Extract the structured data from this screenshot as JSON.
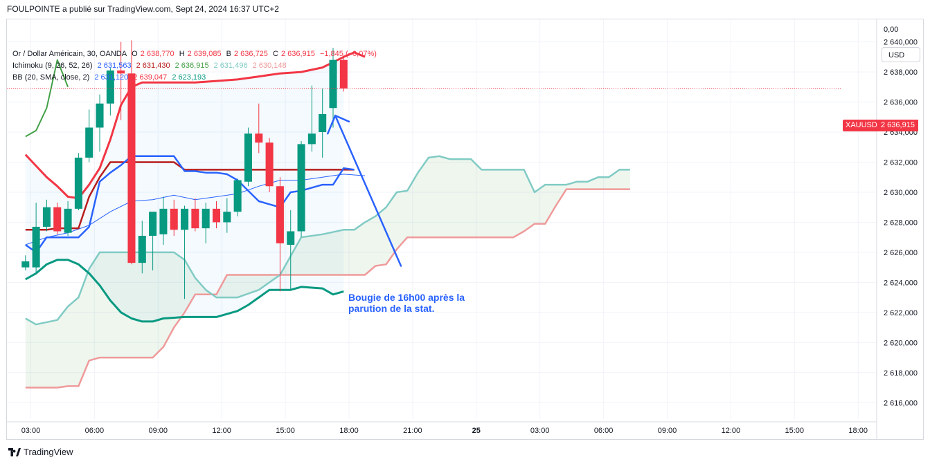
{
  "header": {
    "published": "FOULPOINTE a publié sur TradingView.com, Sept 24, 2024 16:37 UTC+2"
  },
  "legend": {
    "symbol": "Or / Dollar Américain, 30, OANDA",
    "o_label": "O",
    "o_value": "2 638,770",
    "h_label": "H",
    "h_value": "2 639,085",
    "b_label": "B",
    "b_value": "2 636,725",
    "c_label": "C",
    "c_value": "2 636,915",
    "change": "−1,845 (−0,07%)",
    "ichimoku_label": "Ichimoku (9, 26, 52, 26)",
    "ichimoku_values": [
      "2 631,563",
      "2 631,430",
      "2 636,915",
      "2 631,496",
      "2 630,148"
    ],
    "bb_label": "BB (20, SMA, close, 2)",
    "bb_values": [
      "2 631,120",
      "2 639,047",
      "2 623,193"
    ]
  },
  "currency_button": "USD",
  "zero_label": "0,00",
  "symbol_tag": "XAUUSD",
  "last_price": "2 636,915",
  "annotation_lines": [
    "Bougie de 16h00 après la",
    "parution de la stat."
  ],
  "footer": {
    "brand": "TradingView"
  },
  "colors": {
    "up": "#089981",
    "down": "#f23645",
    "tenkan": "#2962ff",
    "kijun": "#b71c1c",
    "chikou": "#43a047",
    "span_a": "#80cbc4",
    "span_b": "#ef9a9a",
    "bb_upper": "#f23645",
    "bb_lower": "#089981",
    "bb_basis": "#2962ff",
    "annotation": "#2962ff"
  },
  "chart_data": {
    "type": "candlestick",
    "symbol": "XAUUSD",
    "interval": "30",
    "y_ticks": [
      2616000,
      2618000,
      2620000,
      2622000,
      2624000,
      2626000,
      2628000,
      2630000,
      2632000,
      2634000,
      2636000,
      2638000,
      2640000
    ],
    "y_tick_labels": [
      "2 616,000",
      "2 618,000",
      "2 620,000",
      "2 622,000",
      "2 624,000",
      "2 626,000",
      "2 628,000",
      "2 630,000",
      "2 632,000",
      "2 634,000",
      "2 636,000",
      "2 638,000",
      "2 640,000"
    ],
    "ylim": [
      2615000,
      2641500
    ],
    "x_ticks": [
      0.5,
      6.5,
      12.5,
      18.5,
      24.5,
      30.5,
      36.5,
      42.5,
      48.5,
      54.5,
      60.5,
      66.5,
      72.5,
      78.5
    ],
    "x_tick_labels": [
      "03:00",
      "06:00",
      "09:00",
      "12:00",
      "15:00",
      "18:00",
      "21:00",
      "25",
      "03:00",
      "06:00",
      "09:00",
      "12:00",
      "15:00",
      "18:00"
    ],
    "xlim": [
      -1.75,
      80.25
    ],
    "candles": [
      {
        "o": 2625,
        "h": 2625.8,
        "l": 2624.8,
        "c": 2625.4
      },
      {
        "o": 2625,
        "h": 2629.3,
        "l": 2624.6,
        "c": 2627.7
      },
      {
        "o": 2627.7,
        "h": 2629.5,
        "l": 2627.4,
        "c": 2629
      },
      {
        "o": 2629,
        "h": 2629.3,
        "l": 2627.2,
        "c": 2627.4
      },
      {
        "o": 2627.3,
        "h": 2629.4,
        "l": 2627.1,
        "c": 2628.9
      },
      {
        "o": 2628.9,
        "h": 2632.6,
        "l": 2628.8,
        "c": 2632.3
      },
      {
        "o": 2632.3,
        "h": 2635.5,
        "l": 2632,
        "c": 2634.3
      },
      {
        "o": 2634.3,
        "h": 2636.5,
        "l": 2632.7,
        "c": 2635.9
      },
      {
        "o": 2635.9,
        "h": 2638.3,
        "l": 2635.1,
        "c": 2638.1
      },
      {
        "o": 2638.1,
        "h": 2640,
        "l": 2634.8,
        "c": 2637.9
      },
      {
        "o": 2637.9,
        "h": 2640.1,
        "l": 2625.2,
        "c": 2625.3
      },
      {
        "o": 2625.3,
        "h": 2628.1,
        "l": 2624.6,
        "c": 2627.1
      },
      {
        "o": 2627.1,
        "h": 2628.4,
        "l": 2624.8,
        "c": 2628.7
      },
      {
        "o": 2627.2,
        "h": 2629.7,
        "l": 2626.5,
        "c": 2628.9
      },
      {
        "o": 2628.9,
        "h": 2629.5,
        "l": 2627.1,
        "c": 2627.5
      },
      {
        "o": 2627.5,
        "h": 2629.1,
        "l": 2622.9,
        "c": 2628.9
      },
      {
        "o": 2628.9,
        "h": 2629.6,
        "l": 2627.4,
        "c": 2627.6
      },
      {
        "o": 2627.6,
        "h": 2629.3,
        "l": 2626.6,
        "c": 2628.9
      },
      {
        "o": 2628.9,
        "h": 2629.4,
        "l": 2627.6,
        "c": 2628
      },
      {
        "o": 2628,
        "h": 2629.6,
        "l": 2627.3,
        "c": 2628.7
      },
      {
        "o": 2628.7,
        "h": 2630.9,
        "l": 2628.4,
        "c": 2630.8
      },
      {
        "o": 2630.7,
        "h": 2634.3,
        "l": 2630.4,
        "c": 2633.9
      },
      {
        "o": 2633.9,
        "h": 2635.9,
        "l": 2632.6,
        "c": 2633.3
      },
      {
        "o": 2633.3,
        "h": 2633.6,
        "l": 2630,
        "c": 2630.4
      },
      {
        "o": 2630.4,
        "h": 2631,
        "l": 2623.4,
        "c": 2626.6
      },
      {
        "o": 2626.5,
        "h": 2628.8,
        "l": 2623.5,
        "c": 2627.4
      },
      {
        "o": 2627.4,
        "h": 2633.4,
        "l": 2627,
        "c": 2633.2
      },
      {
        "o": 2633.2,
        "h": 2637.1,
        "l": 2632.7,
        "c": 2633.9
      },
      {
        "o": 2634,
        "h": 2636.9,
        "l": 2632.3,
        "c": 2635.2
      },
      {
        "o": 2635.6,
        "h": 2639.6,
        "l": 2634.3,
        "c": 2638.8
      },
      {
        "o": 2638.8,
        "h": 2639.1,
        "l": 2636.7,
        "c": 2636.9
      }
    ],
    "series": [
      {
        "key": "bb_upper",
        "points": [
          [
            0,
            2632.5
          ],
          [
            2,
            2631
          ],
          [
            3,
            2630.4
          ],
          [
            4,
            2629.7
          ],
          [
            5,
            2629.6
          ],
          [
            6,
            2630.5
          ],
          [
            7,
            2631.6
          ],
          [
            8,
            2633.5
          ],
          [
            9,
            2635.8
          ],
          [
            10,
            2637
          ],
          [
            11,
            2637.3
          ],
          [
            12,
            2637.3
          ],
          [
            14,
            2637.3
          ],
          [
            16,
            2637.3
          ],
          [
            18,
            2637.4
          ],
          [
            20,
            2637.5
          ],
          [
            22,
            2637.7
          ],
          [
            24,
            2637.9
          ],
          [
            26,
            2638
          ],
          [
            28,
            2638.3
          ],
          [
            30,
            2639
          ],
          [
            31,
            2639.3
          ],
          [
            32,
            2639
          ]
        ]
      },
      {
        "key": "bb_basis",
        "points": [
          [
            0,
            2626.5
          ],
          [
            2,
            2627
          ],
          [
            4,
            2627.3
          ],
          [
            6,
            2627.8
          ],
          [
            8,
            2628.7
          ],
          [
            10,
            2629.4
          ],
          [
            12,
            2629.5
          ],
          [
            14,
            2629.8
          ],
          [
            16,
            2629.5
          ],
          [
            18,
            2629.7
          ],
          [
            20,
            2629.9
          ],
          [
            22,
            2630.4
          ],
          [
            24,
            2630.8
          ],
          [
            26,
            2630.8
          ],
          [
            28,
            2631
          ],
          [
            30,
            2631.2
          ],
          [
            32,
            2631.1
          ]
        ]
      },
      {
        "key": "bb_lower",
        "points": [
          [
            0,
            2624.2
          ],
          [
            1,
            2624.6
          ],
          [
            2,
            2625.2
          ],
          [
            3,
            2625.5
          ],
          [
            4,
            2625.5
          ],
          [
            5,
            2625.2
          ],
          [
            6,
            2624.6
          ],
          [
            7,
            2623.8
          ],
          [
            8,
            2622.8
          ],
          [
            9,
            2622
          ],
          [
            10,
            2621.6
          ],
          [
            11,
            2621.4
          ],
          [
            12,
            2621.4
          ],
          [
            13,
            2621.6
          ],
          [
            15,
            2621.7
          ],
          [
            18,
            2621.7
          ],
          [
            20,
            2622.1
          ],
          [
            21,
            2622.5
          ],
          [
            22,
            2623
          ],
          [
            23,
            2623.5
          ],
          [
            24,
            2623.5
          ],
          [
            25,
            2623.5
          ],
          [
            26,
            2623.7
          ],
          [
            28,
            2623.6
          ],
          [
            29,
            2623.2
          ],
          [
            30,
            2623.4
          ]
        ]
      },
      {
        "key": "tenkan",
        "points": [
          [
            0,
            2626.5
          ],
          [
            1,
            2626
          ],
          [
            2,
            2627
          ],
          [
            3,
            2627
          ],
          [
            5,
            2627
          ],
          [
            6,
            2627.7
          ],
          [
            7,
            2630.7
          ],
          [
            8,
            2631.3
          ],
          [
            9,
            2631.8
          ],
          [
            10,
            2632.4
          ],
          [
            11,
            2632.4
          ],
          [
            12,
            2632.4
          ],
          [
            13,
            2632.4
          ],
          [
            14,
            2632.4
          ],
          [
            15,
            2631.4
          ],
          [
            16,
            2631.4
          ],
          [
            17,
            2631.3
          ],
          [
            18,
            2631.3
          ],
          [
            19,
            2631.2
          ],
          [
            20,
            2630.8
          ],
          [
            22,
            2629.4
          ],
          [
            23,
            2629.2
          ],
          [
            24,
            2629
          ],
          [
            25,
            2630
          ],
          [
            26,
            2630.1
          ],
          [
            27,
            2630.3
          ],
          [
            28,
            2630.5
          ],
          [
            29,
            2630.5
          ],
          [
            30,
            2631.6
          ],
          [
            31,
            2631.5
          ]
        ]
      },
      {
        "key": "kijun",
        "points": [
          [
            0,
            2627.5
          ],
          [
            2,
            2627.5
          ],
          [
            3,
            2627.6
          ],
          [
            5,
            2627.6
          ],
          [
            6,
            2629.7
          ],
          [
            7,
            2631
          ],
          [
            8,
            2632
          ],
          [
            9,
            2632
          ],
          [
            14,
            2632
          ],
          [
            15,
            2631.5
          ],
          [
            20,
            2631.5
          ],
          [
            31,
            2631.5
          ]
        ]
      },
      {
        "key": "chikou",
        "points": [
          [
            0,
            2633.7
          ],
          [
            1,
            2634.1
          ],
          [
            2,
            2635.6
          ],
          [
            3,
            2638.8
          ],
          [
            4,
            2637
          ]
        ]
      },
      {
        "key": "span_a",
        "points": [
          [
            0,
            2621.6
          ],
          [
            1,
            2621.2
          ],
          [
            3,
            2621.5
          ],
          [
            4,
            2622.4
          ],
          [
            5,
            2623
          ],
          [
            6,
            2624.9
          ],
          [
            7,
            2626
          ],
          [
            8,
            2626
          ],
          [
            14,
            2626
          ],
          [
            15,
            2625.5
          ],
          [
            16,
            2624.3
          ],
          [
            17,
            2623.5
          ],
          [
            18,
            2623
          ],
          [
            20,
            2623
          ],
          [
            22,
            2623.5
          ],
          [
            24,
            2624.5
          ],
          [
            26,
            2627
          ],
          [
            28,
            2627.2
          ],
          [
            30,
            2627.5
          ],
          [
            31,
            2627.5
          ],
          [
            32,
            2628
          ],
          [
            33,
            2628.4
          ],
          [
            34,
            2629
          ],
          [
            35,
            2630
          ],
          [
            36,
            2630.1
          ],
          [
            37,
            2631.3
          ],
          [
            38,
            2632.3
          ],
          [
            39,
            2632.4
          ],
          [
            40,
            2632.2
          ],
          [
            41,
            2632.2
          ],
          [
            42,
            2632.2
          ],
          [
            43,
            2631.5
          ],
          [
            47,
            2631.5
          ],
          [
            48,
            2630
          ],
          [
            49,
            2630.5
          ],
          [
            51,
            2630.5
          ],
          [
            52,
            2630.7
          ],
          [
            53,
            2630.7
          ],
          [
            54,
            2631
          ],
          [
            55,
            2631
          ],
          [
            56,
            2631.5
          ],
          [
            57,
            2631.5
          ]
        ]
      },
      {
        "key": "span_b",
        "points": [
          [
            0,
            2617
          ],
          [
            3,
            2617
          ],
          [
            4,
            2617.1
          ],
          [
            5,
            2617.1
          ],
          [
            6,
            2618.8
          ],
          [
            7,
            2619
          ],
          [
            12,
            2619
          ],
          [
            13,
            2619.7
          ],
          [
            14,
            2621
          ],
          [
            15,
            2622
          ],
          [
            16,
            2623.2
          ],
          [
            18,
            2623.2
          ],
          [
            19,
            2624.5
          ],
          [
            31,
            2624.5
          ],
          [
            32,
            2624.5
          ],
          [
            33,
            2625.1
          ],
          [
            34,
            2625.2
          ],
          [
            35,
            2626.2
          ],
          [
            36,
            2627
          ],
          [
            37,
            2627
          ],
          [
            45,
            2627
          ],
          [
            46,
            2627
          ],
          [
            47,
            2627.4
          ],
          [
            48,
            2627.9
          ],
          [
            49,
            2627.9
          ],
          [
            50,
            2629.1
          ],
          [
            51,
            2630.2
          ],
          [
            52,
            2630.2
          ],
          [
            57,
            2630.2
          ]
        ]
      }
    ],
    "last_price_value": 2636.915,
    "annotation_arrow": [
      [
        28.5,
        2633.9
      ],
      [
        29.2,
        2635.1
      ],
      [
        30.5,
        2634.7
      ],
      [
        29.2,
        2635.1
      ],
      [
        35.4,
        2625.1
      ]
    ]
  }
}
